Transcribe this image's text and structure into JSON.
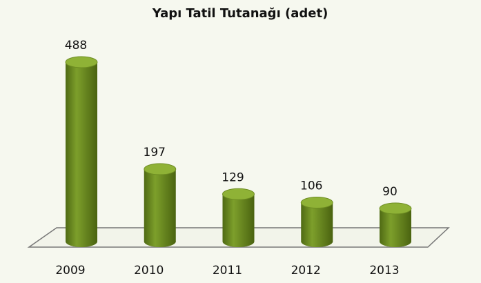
{
  "chart_data": {
    "type": "bar",
    "title": "Yapı Tatil Tutanağı (adet)",
    "categories": [
      "2009",
      "2010",
      "2011",
      "2012",
      "2013"
    ],
    "values": [
      488,
      197,
      129,
      106,
      90
    ],
    "color": "#7d9f2b"
  }
}
